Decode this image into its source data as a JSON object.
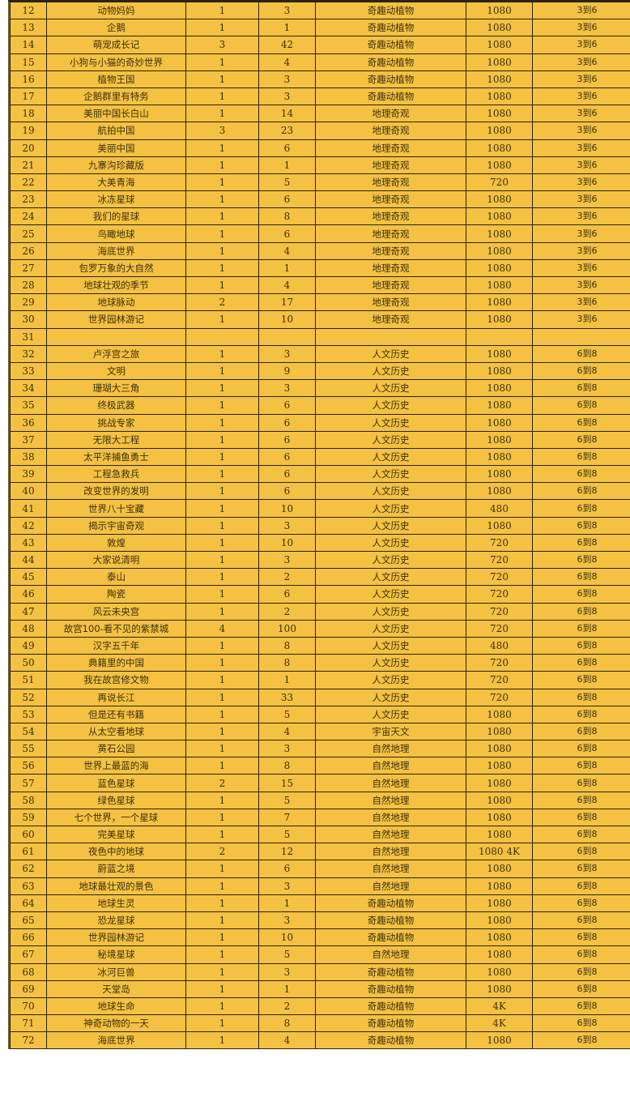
{
  "colors": {
    "cell_background": "#f4c142",
    "grid": "#2a2410",
    "text": "#3a3010"
  },
  "rows": [
    [
      "12",
      "动物妈妈",
      "1",
      "3",
      "奇趣动植物",
      "1080",
      "3到6"
    ],
    [
      "13",
      "企鹅",
      "1",
      "1",
      "奇趣动植物",
      "1080",
      "3到6"
    ],
    [
      "14",
      "萌宠成长记",
      "3",
      "42",
      "奇趣动植物",
      "1080",
      "3到6"
    ],
    [
      "15",
      "小狗与小猫的奇妙世界",
      "1",
      "4",
      "奇趣动植物",
      "1080",
      "3到6"
    ],
    [
      "16",
      "植物王国",
      "1",
      "3",
      "奇趣动植物",
      "1080",
      "3到6"
    ],
    [
      "17",
      "企鹅群里有特务",
      "1",
      "3",
      "奇趣动植物",
      "1080",
      "3到6"
    ],
    [
      "18",
      "美丽中国长白山",
      "1",
      "14",
      "地理奇观",
      "1080",
      "3到6"
    ],
    [
      "19",
      "航拍中国",
      "3",
      "23",
      "地理奇观",
      "1080",
      "3到6"
    ],
    [
      "20",
      "美丽中国",
      "1",
      "6",
      "地理奇观",
      "1080",
      "3到6"
    ],
    [
      "21",
      "九寨沟珍藏版",
      "1",
      "1",
      "地理奇观",
      "1080",
      "3到6"
    ],
    [
      "22",
      "大美青海",
      "1",
      "5",
      "地理奇观",
      "720",
      "3到6"
    ],
    [
      "23",
      "冰冻星球",
      "1",
      "6",
      "地理奇观",
      "1080",
      "3到6"
    ],
    [
      "24",
      "我们的星球",
      "1",
      "8",
      "地理奇观",
      "1080",
      "3到6"
    ],
    [
      "25",
      "鸟瞰地球",
      "1",
      "6",
      "地理奇观",
      "1080",
      "3到6"
    ],
    [
      "26",
      "海底世界",
      "1",
      "4",
      "地理奇观",
      "1080",
      "3到6"
    ],
    [
      "27",
      "包罗万象的大自然",
      "1",
      "1",
      "地理奇观",
      "1080",
      "3到6"
    ],
    [
      "28",
      "地球壮观的季节",
      "1",
      "4",
      "地理奇观",
      "1080",
      "3到6"
    ],
    [
      "29",
      "地球脉动",
      "2",
      "17",
      "地理奇观",
      "1080",
      "3到6"
    ],
    [
      "30",
      "世界园林游记",
      "1",
      "10",
      "地理奇观",
      "1080",
      "3到6"
    ],
    [
      "31",
      "",
      "",
      "",
      "",
      "",
      ""
    ],
    [
      "32",
      "卢浮宫之旅",
      "1",
      "3",
      "人文历史",
      "1080",
      "6到8"
    ],
    [
      "33",
      "文明",
      "1",
      "9",
      "人文历史",
      "1080",
      "6到8"
    ],
    [
      "34",
      "珊瑚大三角",
      "1",
      "3",
      "人文历史",
      "1080",
      "6到8"
    ],
    [
      "35",
      "终极武器",
      "1",
      "6",
      "人文历史",
      "1080",
      "6到8"
    ],
    [
      "36",
      "挑战专家",
      "1",
      "6",
      "人文历史",
      "1080",
      "6到8"
    ],
    [
      "37",
      "无限大工程",
      "1",
      "6",
      "人文历史",
      "1080",
      "6到8"
    ],
    [
      "38",
      "太平洋捕鱼勇士",
      "1",
      "6",
      "人文历史",
      "1080",
      "6到8"
    ],
    [
      "39",
      "工程急救兵",
      "1",
      "6",
      "人文历史",
      "1080",
      "6到8"
    ],
    [
      "40",
      "改变世界的发明",
      "1",
      "6",
      "人文历史",
      "1080",
      "6到8"
    ],
    [
      "41",
      "世界八十宝藏",
      "1",
      "10",
      "人文历史",
      "480",
      "6到8"
    ],
    [
      "42",
      "揭示宇宙奇观",
      "1",
      "3",
      "人文历史",
      "1080",
      "6到8"
    ],
    [
      "43",
      "敦煌",
      "1",
      "10",
      "人文历史",
      "720",
      "6到8"
    ],
    [
      "44",
      "大家说清明",
      "1",
      "3",
      "人文历史",
      "720",
      "6到8"
    ],
    [
      "45",
      "泰山",
      "1",
      "2",
      "人文历史",
      "720",
      "6到8"
    ],
    [
      "46",
      "陶瓷",
      "1",
      "6",
      "人文历史",
      "720",
      "6到8"
    ],
    [
      "47",
      "风云未央宫",
      "1",
      "2",
      "人文历史",
      "720",
      "6到8"
    ],
    [
      "48",
      "故宫100-看不见的紫禁城",
      "4",
      "100",
      "人文历史",
      "720",
      "6到8"
    ],
    [
      "49",
      "汉字五千年",
      "1",
      "8",
      "人文历史",
      "480",
      "6到8"
    ],
    [
      "50",
      "典籍里的中国",
      "1",
      "8",
      "人文历史",
      "720",
      "6到8"
    ],
    [
      "51",
      "我在故宫修文物",
      "1",
      "1",
      "人文历史",
      "720",
      "6到8"
    ],
    [
      "52",
      "再说长江",
      "1",
      "33",
      "人文历史",
      "720",
      "6到8"
    ],
    [
      "53",
      "但是还有书籍",
      "1",
      "5",
      "人文历史",
      "1080",
      "6到8"
    ],
    [
      "54",
      "从太空看地球",
      "1",
      "4",
      "宇宙天文",
      "1080",
      "6到8"
    ],
    [
      "55",
      "黄石公园",
      "1",
      "3",
      "自然地理",
      "1080",
      "6到8"
    ],
    [
      "56",
      "世界上最蓝的海",
      "1",
      "8",
      "自然地理",
      "1080",
      "6到8"
    ],
    [
      "57",
      "蓝色星球",
      "2",
      "15",
      "自然地理",
      "1080",
      "6到8"
    ],
    [
      "58",
      "绿色星球",
      "1",
      "5",
      "自然地理",
      "1080",
      "6到8"
    ],
    [
      "59",
      "七个世界，一个星球",
      "1",
      "7",
      "自然地理",
      "1080",
      "6到8"
    ],
    [
      "60",
      "完美星球",
      "1",
      "5",
      "自然地理",
      "1080",
      "6到8"
    ],
    [
      "61",
      "夜色中的地球",
      "2",
      "12",
      "自然地理",
      "1080 4K",
      "6到8"
    ],
    [
      "62",
      "蔚蓝之境",
      "1",
      "6",
      "自然地理",
      "1080",
      "6到8"
    ],
    [
      "63",
      "地球最壮观的景色",
      "1",
      "3",
      "自然地理",
      "1080",
      "6到8"
    ],
    [
      "64",
      "地球生灵",
      "1",
      "1",
      "奇趣动植物",
      "1080",
      "6到8"
    ],
    [
      "65",
      "恐龙星球",
      "1",
      "3",
      "奇趣动植物",
      "1080",
      "6到8"
    ],
    [
      "66",
      "世界园林游记",
      "1",
      "10",
      "奇趣动植物",
      "1080",
      "6到8"
    ],
    [
      "67",
      "秘境星球",
      "1",
      "5",
      "自然地理",
      "1080",
      "6到8"
    ],
    [
      "68",
      "冰河巨兽",
      "1",
      "3",
      "奇趣动植物",
      "1080",
      "6到8"
    ],
    [
      "69",
      "天堂岛",
      "1",
      "1",
      "奇趣动植物",
      "1080",
      "6到8"
    ],
    [
      "70",
      "地球生命",
      "1",
      "2",
      "奇趣动植物",
      "4K",
      "6到8"
    ],
    [
      "71",
      "神奇动物的一天",
      "1",
      "8",
      "奇趣动植物",
      "4K",
      "6到8"
    ],
    [
      "72",
      "海底世界",
      "1",
      "4",
      "奇趣动植物",
      "1080",
      "6到8"
    ]
  ]
}
